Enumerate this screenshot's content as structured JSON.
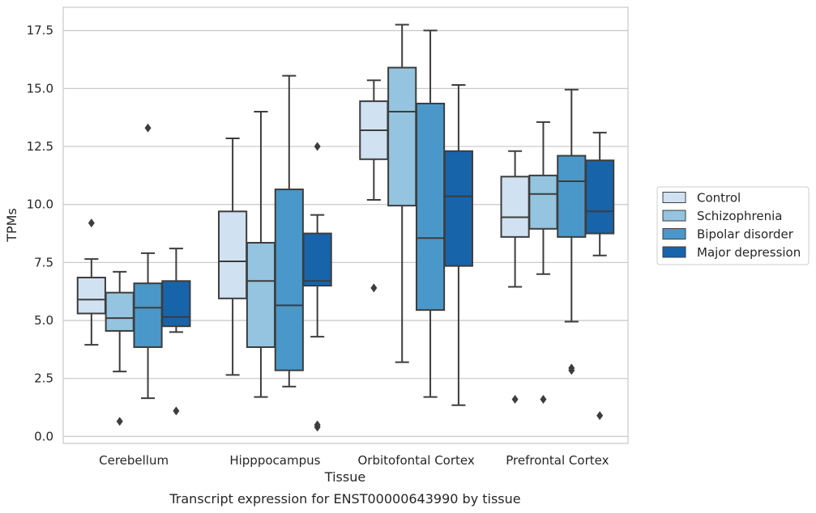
{
  "caption": "Transcript expression for ENST00000643990 by tissue",
  "chart_data": {
    "type": "box",
    "xlabel": "Tissue",
    "ylabel": "TPMs",
    "ylim": [
      -0.3,
      18.5
    ],
    "yticks": [
      "0.0",
      "2.5",
      "5.0",
      "7.5",
      "10.0",
      "12.5",
      "15.0",
      "17.5"
    ],
    "grid": "horizontal",
    "legend_position": "right",
    "categories": [
      "Cerebellum",
      "Hipppocampus",
      "Orbitofontal Cortex",
      "Prefrontal Cortex"
    ],
    "series": [
      {
        "name": "Control",
        "color": "#d0e1f2",
        "boxes": [
          {
            "whislo": 3.95,
            "q1": 5.3,
            "med": 5.9,
            "q3": 6.85,
            "whishi": 7.65,
            "fliers": [
              9.2
            ]
          },
          {
            "whislo": 2.65,
            "q1": 5.95,
            "med": 7.55,
            "q3": 9.7,
            "whishi": 12.85,
            "fliers": []
          },
          {
            "whislo": 10.2,
            "q1": 11.95,
            "med": 13.2,
            "q3": 14.45,
            "whishi": 15.35,
            "fliers": [
              6.4
            ]
          },
          {
            "whislo": 6.45,
            "q1": 8.6,
            "med": 9.45,
            "q3": 11.2,
            "whishi": 12.3,
            "fliers": [
              1.6
            ]
          }
        ]
      },
      {
        "name": "Schizophrenia",
        "color": "#94c4df",
        "boxes": [
          {
            "whislo": 2.8,
            "q1": 4.55,
            "med": 5.1,
            "q3": 6.2,
            "whishi": 7.1,
            "fliers": [
              0.65
            ]
          },
          {
            "whislo": 1.7,
            "q1": 3.85,
            "med": 6.7,
            "q3": 8.35,
            "whishi": 14.0,
            "fliers": []
          },
          {
            "whislo": 3.2,
            "q1": 9.95,
            "med": 14.0,
            "q3": 15.9,
            "whishi": 17.75,
            "fliers": []
          },
          {
            "whislo": 7.0,
            "q1": 8.95,
            "med": 10.45,
            "q3": 11.25,
            "whishi": 13.55,
            "fliers": [
              1.6
            ]
          }
        ]
      },
      {
        "name": "Bipolar disorder",
        "color": "#4a98c9",
        "boxes": [
          {
            "whislo": 1.65,
            "q1": 3.85,
            "med": 5.55,
            "q3": 6.6,
            "whishi": 7.9,
            "fliers": [
              13.3
            ]
          },
          {
            "whislo": 2.15,
            "q1": 2.85,
            "med": 5.65,
            "q3": 10.65,
            "whishi": 15.55,
            "fliers": []
          },
          {
            "whislo": 1.7,
            "q1": 5.45,
            "med": 8.55,
            "q3": 14.35,
            "whishi": 17.5,
            "fliers": []
          },
          {
            "whislo": 4.95,
            "q1": 8.6,
            "med": 11.0,
            "q3": 12.1,
            "whishi": 14.95,
            "fliers": [
              2.85,
              2.95
            ]
          }
        ]
      },
      {
        "name": "Major depression",
        "color": "#1764ab",
        "boxes": [
          {
            "whislo": 4.5,
            "q1": 4.75,
            "med": 5.15,
            "q3": 6.7,
            "whishi": 8.1,
            "fliers": [
              1.1
            ]
          },
          {
            "whislo": 4.3,
            "q1": 6.5,
            "med": 6.7,
            "q3": 8.75,
            "whishi": 9.55,
            "fliers": [
              12.5,
              0.4,
              0.5
            ]
          },
          {
            "whislo": 1.35,
            "q1": 7.35,
            "med": 10.35,
            "q3": 12.3,
            "whishi": 15.15,
            "fliers": []
          },
          {
            "whislo": 7.8,
            "q1": 8.75,
            "med": 9.7,
            "q3": 11.9,
            "whishi": 13.1,
            "fliers": [
              0.9
            ]
          }
        ]
      }
    ]
  }
}
